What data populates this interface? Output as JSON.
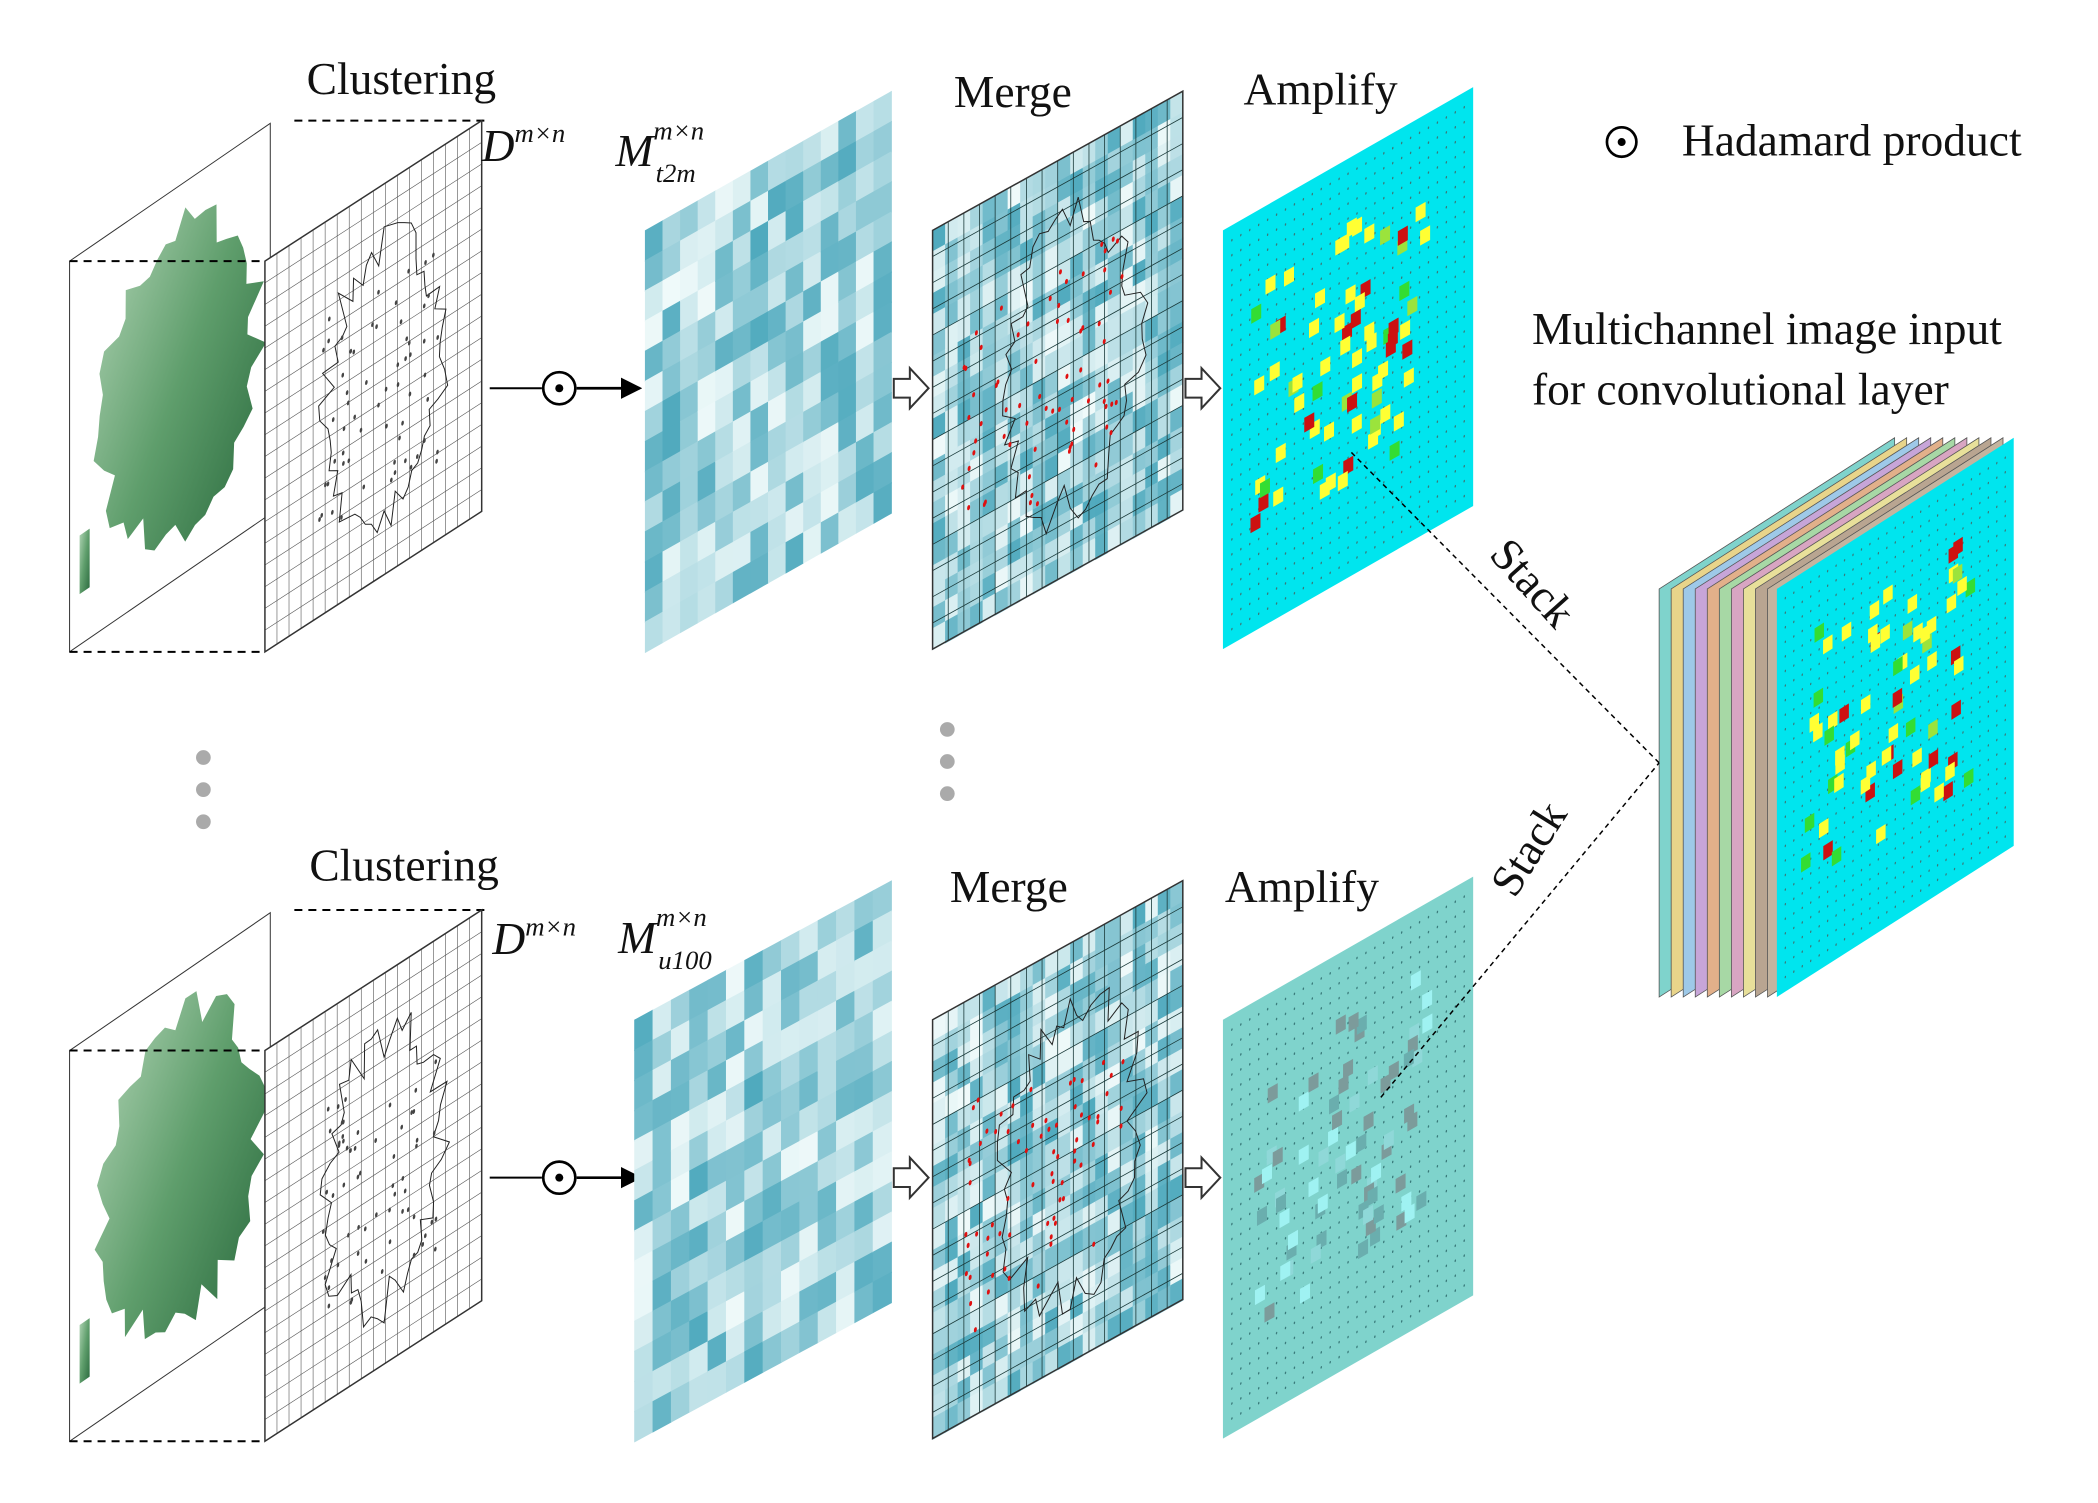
{
  "legend": {
    "label": "Hadamard product"
  },
  "output": {
    "title_lines": [
      "Multichannel image input",
      "for convolutional layer"
    ]
  },
  "rows": [
    {
      "clustering": "Clustering",
      "matrix_d": {
        "base": "D",
        "sup": "m×n"
      },
      "matrix_m": {
        "base": "M",
        "sup": "m×n",
        "sub": "t2m"
      },
      "merge": "Merge",
      "amplify": "Amplify",
      "stack": "Stack"
    },
    {
      "clustering": "Clustering",
      "matrix_d": {
        "base": "D",
        "sup": "m×n"
      },
      "matrix_m": {
        "base": "M",
        "sup": "m×n",
        "sub": "u100"
      },
      "merge": "Merge",
      "amplify": "Amplify",
      "stack": "Stack"
    }
  ]
}
